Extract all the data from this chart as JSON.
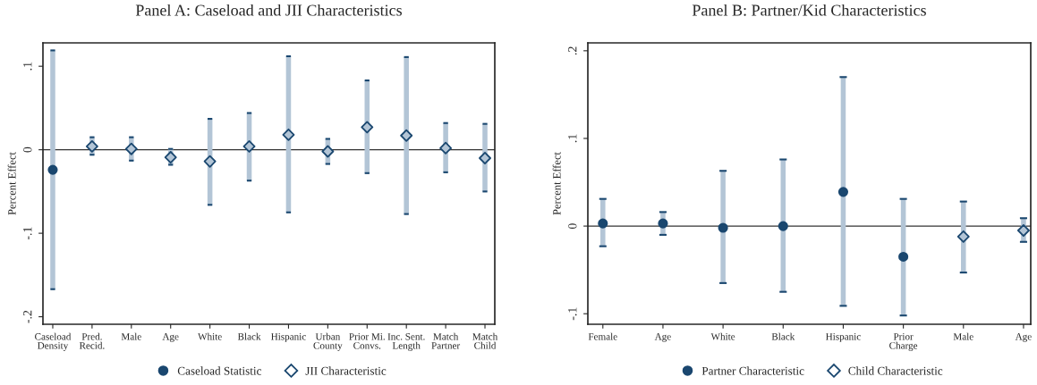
{
  "chart_data": [
    {
      "type": "scatter",
      "title": "Panel A: Caseload and JII Characteristics",
      "ylabel": "Percent Effect",
      "categories": [
        "Caseload\nDensity",
        "Pred.\nRecid.",
        "Male",
        "Age",
        "White",
        "Black",
        "Hispanic",
        "Urban\nCounty",
        "Prior Mi.\nConvs.",
        "Inc. Sent.\nLength",
        "Match\nPartner",
        "Match\nChild"
      ],
      "ylim": [
        -0.209,
        0.128
      ],
      "yticks": [
        {
          "value": 0.1,
          "label": ".1"
        },
        {
          "value": 0,
          "label": "0"
        },
        {
          "value": -0.1,
          "label": "-.1"
        },
        {
          "value": -0.2,
          "label": "-.2"
        }
      ],
      "series": [
        {
          "name": "Caseload Statistic",
          "color": "#1a476f",
          "marker": "circle",
          "values": [
            -0.024,
            null,
            null,
            null,
            null,
            null,
            null,
            null,
            null,
            null,
            null,
            null
          ],
          "errors": [
            [
              -0.167,
              0.119
            ],
            null,
            null,
            null,
            null,
            null,
            null,
            null,
            null,
            null,
            null,
            null
          ]
        },
        {
          "name": "JII Characteristic",
          "color": "#1a476f",
          "marker": "diamond",
          "values": [
            null,
            0.004,
            0.001,
            -0.009,
            -0.014,
            0.004,
            0.018,
            -0.002,
            0.027,
            0.017,
            0.002,
            -0.01
          ],
          "errors": [
            null,
            [
              -0.006,
              0.015
            ],
            [
              -0.013,
              0.015
            ],
            [
              -0.018,
              0.001
            ],
            [
              -0.066,
              0.037
            ],
            [
              -0.037,
              0.044
            ],
            [
              -0.075,
              0.112
            ],
            [
              -0.017,
              0.013
            ],
            [
              -0.028,
              0.083
            ],
            [
              -0.077,
              0.111
            ],
            [
              -0.027,
              0.032
            ],
            [
              -0.05,
              0.031
            ]
          ]
        }
      ],
      "ref_lines": [
        {
          "axis": "y",
          "value": 0,
          "color": "#333333"
        }
      ],
      "grid": false,
      "legend": "bottom"
    },
    {
      "type": "scatter",
      "title": "Panel B: Partner/Kid Characteristics",
      "ylabel": "Percent Effect",
      "categories": [
        "Female",
        "Age",
        "White",
        "Black",
        "Hispanic",
        "Prior\nCharge",
        "Male",
        "Age"
      ],
      "ylim": [
        -0.112,
        0.209
      ],
      "yticks": [
        {
          "value": -0.1,
          "label": "-.1"
        },
        {
          "value": 0,
          "label": "0"
        },
        {
          "value": 0.1,
          "label": ".1"
        },
        {
          "value": 0.2,
          "label": ".2"
        }
      ],
      "series": [
        {
          "name": "Partner Characteristic",
          "color": "#1a476f",
          "marker": "circle",
          "values": [
            0.003,
            0.003,
            -0.002,
            0.0,
            0.039,
            -0.035,
            null,
            null
          ],
          "errors": [
            [
              -0.023,
              0.031
            ],
            [
              -0.01,
              0.016
            ],
            [
              -0.065,
              0.063
            ],
            [
              -0.075,
              0.076
            ],
            [
              -0.091,
              0.17
            ],
            [
              -0.102,
              0.031
            ],
            null,
            null
          ]
        },
        {
          "name": "Child Characteristic",
          "color": "#1a476f",
          "marker": "diamond",
          "values": [
            null,
            null,
            null,
            null,
            null,
            null,
            -0.012,
            -0.005
          ],
          "errors": [
            null,
            null,
            null,
            null,
            null,
            null,
            [
              -0.053,
              0.028
            ],
            [
              -0.018,
              0.009
            ]
          ]
        }
      ],
      "ref_lines": [
        {
          "axis": "y",
          "value": 0,
          "color": "#333333"
        }
      ],
      "grid": false,
      "legend": "bottom"
    }
  ]
}
